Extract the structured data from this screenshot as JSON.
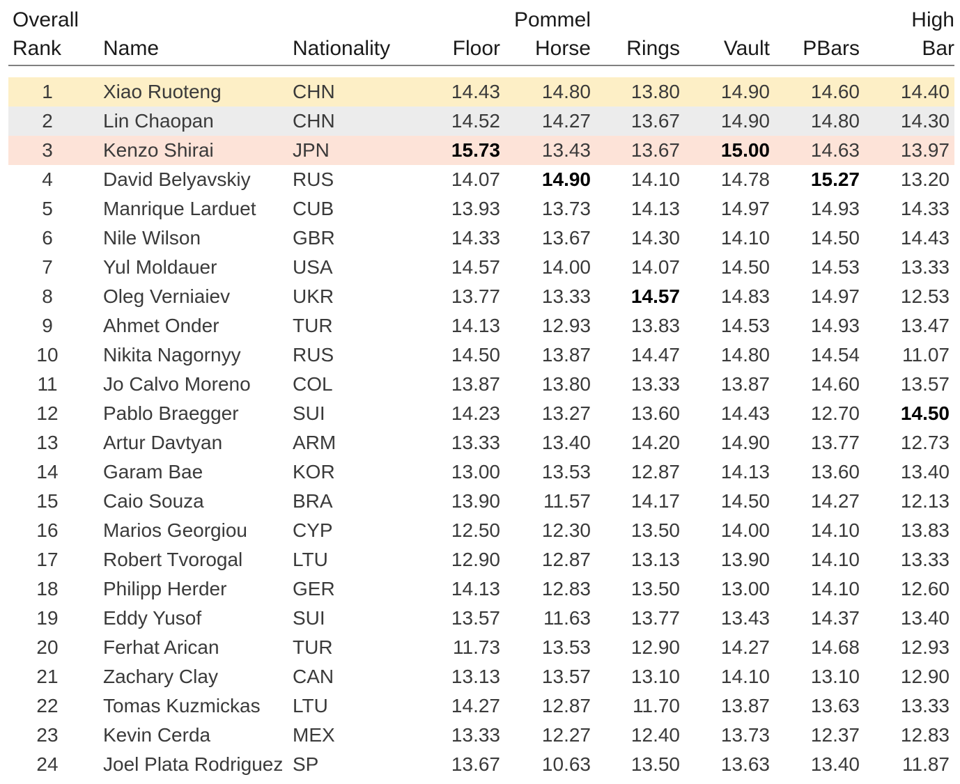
{
  "chart_data": {
    "type": "table",
    "columns": [
      {
        "key": "rank",
        "line1": "Overall",
        "line2": "Rank"
      },
      {
        "key": "name",
        "line1": "",
        "line2": "Name"
      },
      {
        "key": "nat",
        "line1": "",
        "line2": "Nationality"
      },
      {
        "key": "floor",
        "line1": "",
        "line2": "Floor"
      },
      {
        "key": "pommel",
        "line1": "Pommel",
        "line2": "Horse"
      },
      {
        "key": "rings",
        "line1": "",
        "line2": "Rings"
      },
      {
        "key": "vault",
        "line1": "",
        "line2": "Vault"
      },
      {
        "key": "pbars",
        "line1": "",
        "line2": "PBars"
      },
      {
        "key": "highbar",
        "line1": "High",
        "line2": "Bar"
      }
    ],
    "rows": [
      {
        "rank": "1",
        "name": "Xiao Ruoteng",
        "nat": "CHN",
        "scores": [
          "14.43",
          "14.80",
          "13.80",
          "14.90",
          "14.60",
          "14.40"
        ],
        "best": [],
        "highlight": "#fdefc6"
      },
      {
        "rank": "2",
        "name": "Lin Chaopan",
        "nat": "CHN",
        "scores": [
          "14.52",
          "14.27",
          "13.67",
          "14.90",
          "14.80",
          "14.30"
        ],
        "best": [],
        "highlight": "#ececec"
      },
      {
        "rank": "3",
        "name": "Kenzo Shirai",
        "nat": "JPN",
        "scores": [
          "15.73",
          "13.43",
          "13.67",
          "15.00",
          "14.63",
          "13.97"
        ],
        "best": [
          0,
          3
        ],
        "highlight": "#fde3d8"
      },
      {
        "rank": "4",
        "name": "David Belyavskiy",
        "nat": "RUS",
        "scores": [
          "14.07",
          "14.90",
          "14.10",
          "14.78",
          "15.27",
          "13.20"
        ],
        "best": [
          1,
          4
        ],
        "highlight": ""
      },
      {
        "rank": "5",
        "name": "Manrique Larduet",
        "nat": "CUB",
        "scores": [
          "13.93",
          "13.73",
          "14.13",
          "14.97",
          "14.93",
          "14.33"
        ],
        "best": [],
        "highlight": ""
      },
      {
        "rank": "6",
        "name": "Nile Wilson",
        "nat": "GBR",
        "scores": [
          "14.33",
          "13.67",
          "14.30",
          "14.10",
          "14.50",
          "14.43"
        ],
        "best": [],
        "highlight": ""
      },
      {
        "rank": "7",
        "name": "Yul Moldauer",
        "nat": "USA",
        "scores": [
          "14.57",
          "14.00",
          "14.07",
          "14.50",
          "14.53",
          "13.33"
        ],
        "best": [],
        "highlight": ""
      },
      {
        "rank": "8",
        "name": "Oleg Verniaiev",
        "nat": "UKR",
        "scores": [
          "13.77",
          "13.33",
          "14.57",
          "14.83",
          "14.97",
          "12.53"
        ],
        "best": [
          2
        ],
        "highlight": ""
      },
      {
        "rank": "9",
        "name": "Ahmet Onder",
        "nat": "TUR",
        "scores": [
          "14.13",
          "12.93",
          "13.83",
          "14.53",
          "14.93",
          "13.47"
        ],
        "best": [],
        "highlight": ""
      },
      {
        "rank": "10",
        "name": "Nikita Nagornyy",
        "nat": "RUS",
        "scores": [
          "14.50",
          "13.87",
          "14.47",
          "14.80",
          "14.54",
          "11.07"
        ],
        "best": [],
        "highlight": ""
      },
      {
        "rank": "11",
        "name": "Jo Calvo Moreno",
        "nat": "COL",
        "scores": [
          "13.87",
          "13.80",
          "13.33",
          "13.87",
          "14.60",
          "13.57"
        ],
        "best": [],
        "highlight": ""
      },
      {
        "rank": "12",
        "name": "Pablo Braegger",
        "nat": "SUI",
        "scores": [
          "14.23",
          "13.27",
          "13.60",
          "14.43",
          "12.70",
          "14.50"
        ],
        "best": [
          5
        ],
        "highlight": ""
      },
      {
        "rank": "13",
        "name": "Artur Davtyan",
        "nat": "ARM",
        "scores": [
          "13.33",
          "13.40",
          "14.20",
          "14.90",
          "13.77",
          "12.73"
        ],
        "best": [],
        "highlight": ""
      },
      {
        "rank": "14",
        "name": "Garam Bae",
        "nat": "KOR",
        "scores": [
          "13.00",
          "13.53",
          "12.87",
          "14.13",
          "13.60",
          "13.40"
        ],
        "best": [],
        "highlight": ""
      },
      {
        "rank": "15",
        "name": "Caio Souza",
        "nat": "BRA",
        "scores": [
          "13.90",
          "11.57",
          "14.17",
          "14.50",
          "14.27",
          "12.13"
        ],
        "best": [],
        "highlight": ""
      },
      {
        "rank": "16",
        "name": "Marios Georgiou",
        "nat": "CYP",
        "scores": [
          "12.50",
          "12.30",
          "13.50",
          "14.00",
          "14.10",
          "13.83"
        ],
        "best": [],
        "highlight": ""
      },
      {
        "rank": "17",
        "name": "Robert Tvorogal",
        "nat": "LTU",
        "scores": [
          "12.90",
          "12.87",
          "13.13",
          "13.90",
          "14.10",
          "13.33"
        ],
        "best": [],
        "highlight": ""
      },
      {
        "rank": "18",
        "name": "Philipp Herder",
        "nat": "GER",
        "scores": [
          "14.13",
          "12.83",
          "13.50",
          "13.00",
          "14.10",
          "12.60"
        ],
        "best": [],
        "highlight": ""
      },
      {
        "rank": "19",
        "name": "Eddy Yusof",
        "nat": "SUI",
        "scores": [
          "13.57",
          "11.63",
          "13.77",
          "13.43",
          "14.37",
          "13.40"
        ],
        "best": [],
        "highlight": ""
      },
      {
        "rank": "20",
        "name": "Ferhat Arican",
        "nat": "TUR",
        "scores": [
          "11.73",
          "13.53",
          "12.90",
          "14.27",
          "14.68",
          "12.93"
        ],
        "best": [],
        "highlight": ""
      },
      {
        "rank": "21",
        "name": "Zachary Clay",
        "nat": "CAN",
        "scores": [
          "13.13",
          "13.57",
          "13.10",
          "14.10",
          "13.10",
          "12.90"
        ],
        "best": [],
        "highlight": ""
      },
      {
        "rank": "22",
        "name": "Tomas Kuzmickas",
        "nat": "LTU",
        "scores": [
          "14.27",
          "12.87",
          "11.70",
          "13.87",
          "13.63",
          "13.33"
        ],
        "best": [],
        "highlight": ""
      },
      {
        "rank": "23",
        "name": "Kevin Cerda",
        "nat": "MEX",
        "scores": [
          "13.33",
          "12.27",
          "12.40",
          "13.73",
          "12.37",
          "12.83"
        ],
        "best": [],
        "highlight": ""
      },
      {
        "rank": "24",
        "name": "Joel Plata Rodriguez",
        "nat": "SP",
        "scores": [
          "13.67",
          "10.63",
          "13.50",
          "13.63",
          "13.40",
          "11.87"
        ],
        "best": [],
        "highlight": ""
      }
    ]
  }
}
